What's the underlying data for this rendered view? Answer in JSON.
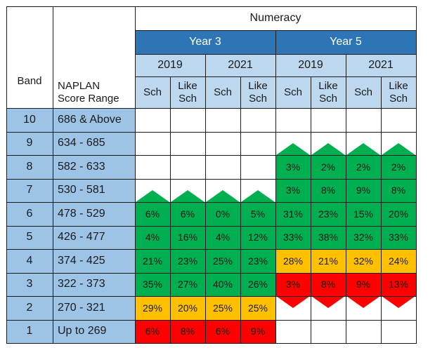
{
  "table": {
    "title": "Numeracy",
    "header_band": "Band",
    "header_range": "NAPLAN\nScore Range",
    "years": [
      "Year 3",
      "Year 5"
    ],
    "test_years": [
      "2019",
      "2021",
      "2019",
      "2021"
    ],
    "subcols": [
      "Sch",
      "Like\nSch",
      "Sch",
      "Like\nSch",
      "Sch",
      "Like\nSch",
      "Sch",
      "Like\nSch"
    ],
    "rows": [
      {
        "band": "10",
        "range": "686 & Above",
        "values": [
          "",
          "",
          "",
          "",
          "",
          "",
          "",
          ""
        ]
      },
      {
        "band": "9",
        "range": "634 - 685",
        "values": [
          "",
          "",
          "",
          "",
          "",
          "",
          "",
          ""
        ]
      },
      {
        "band": "8",
        "range": "582 - 633",
        "values": [
          "",
          "",
          "",
          "",
          "3%",
          "2%",
          "2%",
          "2%"
        ]
      },
      {
        "band": "7",
        "range": "530 - 581",
        "values": [
          "",
          "",
          "",
          "",
          "3%",
          "8%",
          "9%",
          "8%"
        ]
      },
      {
        "band": "6",
        "range": "478 - 529",
        "values": [
          "6%",
          "6%",
          "0%",
          "5%",
          "31%",
          "23%",
          "15%",
          "20%"
        ]
      },
      {
        "band": "5",
        "range": "426 - 477",
        "values": [
          "4%",
          "16%",
          "4%",
          "12%",
          "33%",
          "38%",
          "32%",
          "33%"
        ]
      },
      {
        "band": "4",
        "range": "374 - 425",
        "values": [
          "21%",
          "23%",
          "25%",
          "23%",
          "28%",
          "21%",
          "32%",
          "24%"
        ]
      },
      {
        "band": "3",
        "range": "322 - 373",
        "values": [
          "35%",
          "27%",
          "40%",
          "26%",
          "3%",
          "8%",
          "9%",
          "13%"
        ]
      },
      {
        "band": "2",
        "range": "270 - 321",
        "values": [
          "29%",
          "20%",
          "25%",
          "25%",
          "",
          "",
          "",
          ""
        ]
      },
      {
        "band": "1",
        "range": "Up to 269",
        "values": [
          "6%",
          "8%",
          "6%",
          "9%",
          "",
          "",
          "",
          ""
        ]
      }
    ],
    "cell_status": [
      [
        "none",
        "none",
        "none",
        "none",
        "none",
        "none",
        "none",
        "none"
      ],
      [
        "none",
        "none",
        "none",
        "none",
        "none",
        "none",
        "none",
        "none"
      ],
      [
        "none",
        "none",
        "none",
        "none",
        "green",
        "green",
        "green",
        "green"
      ],
      [
        "none",
        "none",
        "none",
        "none",
        "green",
        "green",
        "green",
        "green"
      ],
      [
        "green",
        "green",
        "green",
        "green",
        "green",
        "green",
        "green",
        "green"
      ],
      [
        "green",
        "green",
        "green",
        "green",
        "green",
        "green",
        "green",
        "green"
      ],
      [
        "green",
        "green",
        "green",
        "green",
        "orange",
        "orange",
        "orange",
        "orange"
      ],
      [
        "green",
        "green",
        "green",
        "green",
        "red",
        "red",
        "red",
        "red"
      ],
      [
        "orange",
        "orange",
        "orange",
        "orange",
        "none",
        "none",
        "none",
        "none"
      ],
      [
        "red",
        "red",
        "red",
        "red",
        "none",
        "none",
        "none",
        "none"
      ]
    ],
    "colors": {
      "year_header": "#2e75b6",
      "sub_header": "#bdd7ee",
      "band_cell": "#9dc3e6",
      "green": "#00b050",
      "orange": "#ffc000",
      "red": "#ff0000",
      "white": "#ffffff"
    }
  }
}
